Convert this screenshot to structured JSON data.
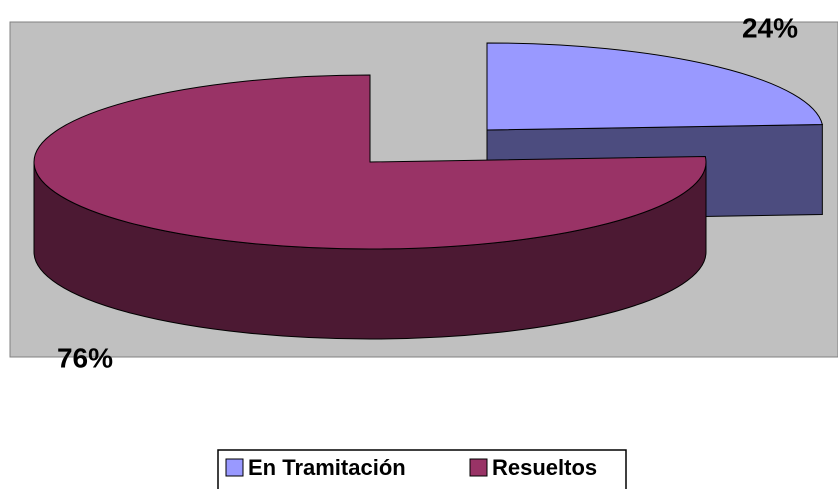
{
  "chart_data": {
    "type": "pie",
    "categories": [
      "En Tramitación",
      "Resueltos"
    ],
    "values": [
      24,
      76
    ],
    "value_labels": [
      "24%",
      "76%"
    ],
    "colors": [
      "#9999ff",
      "#993366"
    ],
    "legend": "bottom"
  }
}
